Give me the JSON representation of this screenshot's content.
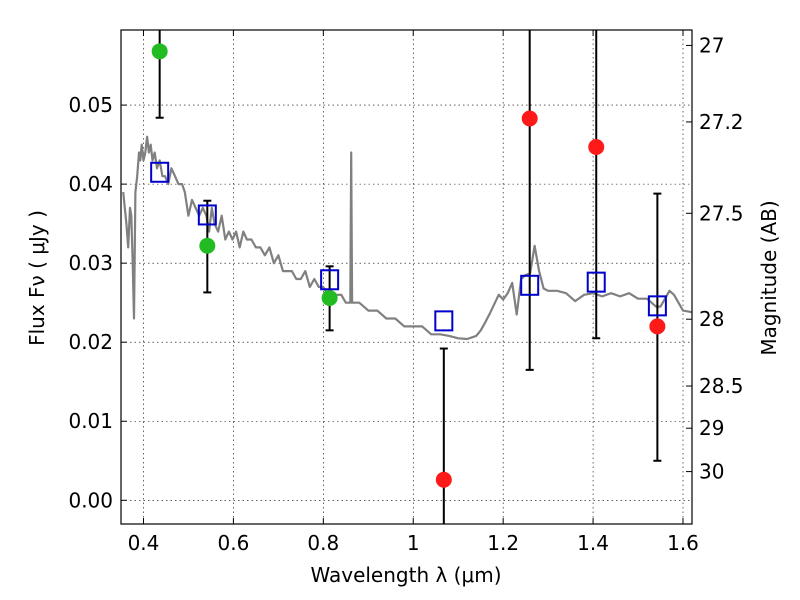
{
  "chart_data": {
    "type": "scatter",
    "xlabel": "Wavelength  λ (μm)",
    "ylabel": "Flux  Fν  ( μJy )",
    "y2label": "Magnitude (AB)",
    "xlim": [
      0.35,
      1.62
    ],
    "ylim": [
      -0.003,
      0.0595
    ],
    "grid": true,
    "x_ticks": [
      "0.4",
      "0.6",
      "0.8",
      "1",
      "1.2",
      "1.4",
      "1.6"
    ],
    "y_ticks": [
      "0.00",
      "0.01",
      "0.02",
      "0.03",
      "0.04",
      "0.05"
    ],
    "mag_ticks": [
      {
        "label": "27",
        "mag": 27.0
      },
      {
        "label": "27.2",
        "mag": 27.2
      },
      {
        "label": "27.5",
        "mag": 27.5
      },
      {
        "label": "28",
        "mag": 28.0
      },
      {
        "label": "28.5",
        "mag": 28.5
      },
      {
        "label": "29",
        "mag": 29.0
      },
      {
        "label": "30",
        "mag": 30.0
      }
    ],
    "colors": {
      "model": "#808080",
      "detections": "#22bb22",
      "nir_detections": "#ff1a1a",
      "model_photometry": "#0000cc",
      "errorbar": "#000000"
    },
    "series": [
      {
        "style": "line",
        "x": [
          0.355,
          0.362,
          0.366,
          0.37,
          0.373,
          0.376,
          0.379,
          0.382,
          0.386,
          0.39,
          0.393,
          0.396,
          0.4,
          0.404,
          0.408,
          0.412,
          0.416,
          0.42,
          0.425,
          0.43,
          0.436,
          0.442,
          0.448,
          0.455,
          0.462,
          0.47,
          0.478,
          0.486,
          0.492,
          0.5,
          0.508,
          0.516,
          0.524,
          0.532,
          0.54,
          0.546,
          0.552,
          0.558,
          0.566,
          0.574,
          0.582,
          0.59,
          0.598,
          0.606,
          0.614,
          0.622,
          0.63,
          0.64,
          0.65,
          0.66,
          0.67,
          0.68,
          0.69,
          0.7,
          0.71,
          0.72,
          0.73,
          0.74,
          0.75,
          0.76,
          0.77,
          0.78,
          0.79,
          0.8,
          0.81,
          0.82,
          0.83,
          0.84,
          0.85,
          0.86,
          0.862,
          0.864,
          0.866,
          0.87,
          0.88,
          0.9,
          0.92,
          0.94,
          0.96,
          0.98,
          1.0,
          1.02,
          1.04,
          1.06,
          1.08,
          1.1,
          1.12,
          1.14,
          1.15,
          1.16,
          1.17,
          1.18,
          1.19,
          1.2,
          1.21,
          1.22,
          1.23,
          1.24,
          1.25,
          1.26,
          1.27,
          1.28,
          1.29,
          1.3,
          1.32,
          1.34,
          1.36,
          1.38,
          1.4,
          1.42,
          1.44,
          1.46,
          1.48,
          1.5,
          1.52,
          1.54,
          1.55,
          1.56,
          1.57,
          1.58,
          1.6,
          1.62
        ],
        "y": [
          0.039,
          0.035,
          0.032,
          0.037,
          0.036,
          0.03,
          0.023,
          0.039,
          0.041,
          0.044,
          0.043,
          0.045,
          0.043,
          0.044,
          0.046,
          0.044,
          0.045,
          0.043,
          0.044,
          0.042,
          0.043,
          0.041,
          0.041,
          0.04,
          0.042,
          0.041,
          0.04,
          0.04,
          0.039,
          0.036,
          0.038,
          0.037,
          0.036,
          0.037,
          0.036,
          0.034,
          0.037,
          0.035,
          0.034,
          0.036,
          0.033,
          0.034,
          0.033,
          0.034,
          0.032,
          0.034,
          0.033,
          0.033,
          0.032,
          0.032,
          0.031,
          0.032,
          0.03,
          0.031,
          0.029,
          0.029,
          0.029,
          0.028,
          0.028,
          0.029,
          0.027,
          0.028,
          0.027,
          0.027,
          0.026,
          0.026,
          0.026,
          0.026,
          0.025,
          0.025,
          0.044,
          0.025,
          0.025,
          0.025,
          0.025,
          0.024,
          0.024,
          0.023,
          0.023,
          0.022,
          0.022,
          0.022,
          0.021,
          0.021,
          0.0208,
          0.0205,
          0.0204,
          0.0208,
          0.0215,
          0.0225,
          0.0236,
          0.0248,
          0.026,
          0.0254,
          0.0262,
          0.0275,
          0.0235,
          0.028,
          0.0285,
          0.0287,
          0.0322,
          0.029,
          0.0268,
          0.0265,
          0.0265,
          0.0262,
          0.0252,
          0.026,
          0.0262,
          0.0258,
          0.0262,
          0.0258,
          0.0262,
          0.0255,
          0.0255,
          0.0245,
          0.0245,
          0.0255,
          0.0265,
          0.026,
          0.024,
          0.0238
        ]
      },
      {
        "style": "markers-circle",
        "x": [
          0.436,
          0.542,
          0.814
        ],
        "y": [
          0.0568,
          0.0322,
          0.0256
        ],
        "yerr_low": [
          0.0484,
          0.0263,
          0.0215
        ],
        "yerr_high": [
          0.0595,
          0.0379,
          0.0296
        ]
      },
      {
        "style": "markers-circle",
        "x": [
          1.068,
          1.259,
          1.407,
          1.543
        ],
        "y": [
          0.0026,
          0.0483,
          0.0447,
          0.022
        ],
        "yerr_low": [
          -0.003,
          0.0165,
          0.0205,
          0.005
        ],
        "yerr_high": [
          0.0192,
          0.0595,
          0.0595,
          0.0388
        ]
      },
      {
        "style": "markers-square-open",
        "x": [
          0.436,
          0.542,
          0.814,
          1.068,
          1.259,
          1.407,
          1.543
        ],
        "y": [
          0.0415,
          0.0361,
          0.0279,
          0.0227,
          0.0272,
          0.0276,
          0.0246
        ]
      }
    ]
  }
}
